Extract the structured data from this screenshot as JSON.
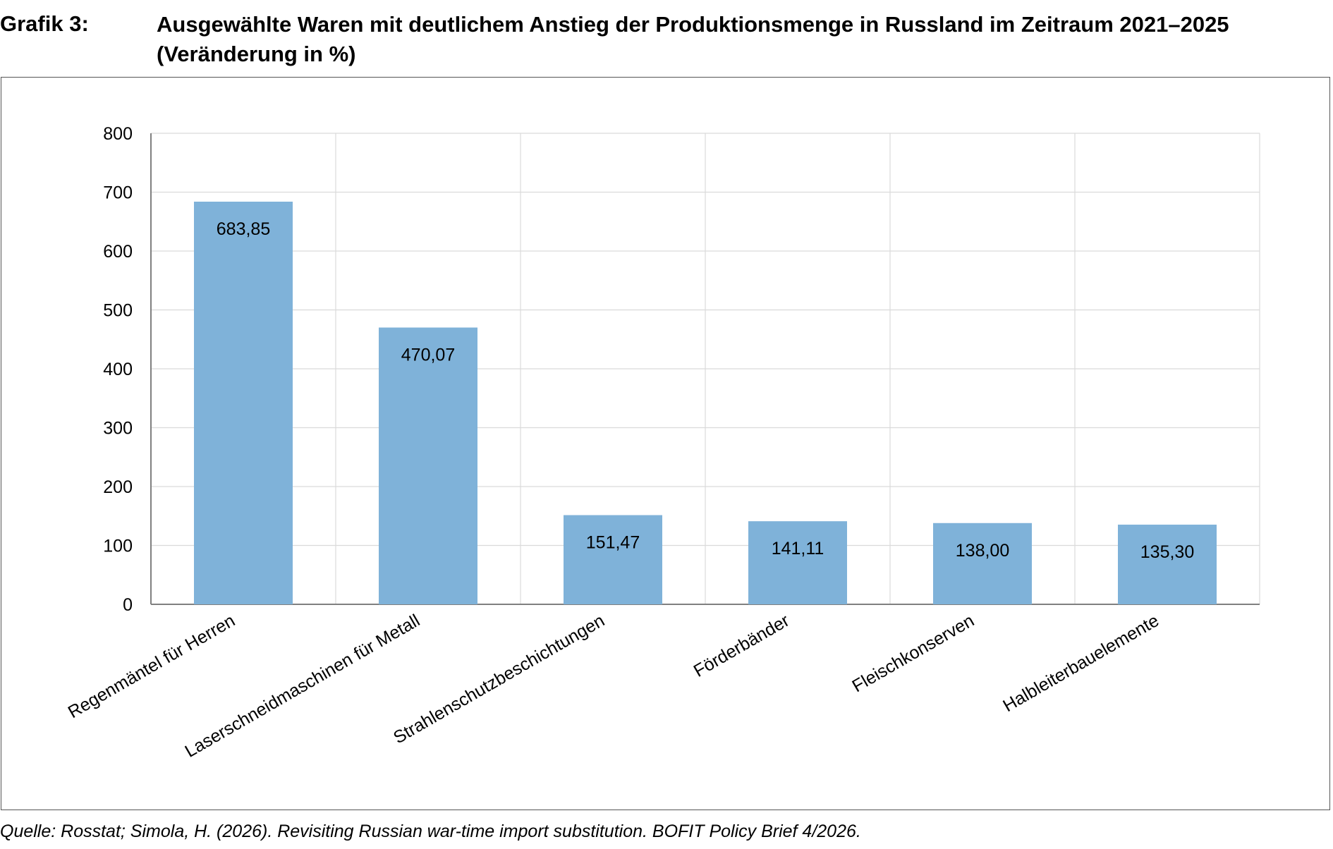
{
  "figure": {
    "label": "Grafik 3:",
    "title": "Ausgewählte Waren mit deutlichem Anstieg der Produktionsmenge in Russland im Zeitraum 2021–2025 (Veränderung in %)",
    "source": "Quelle: Rosstat; Simola, H. (2026). Revisiting Russian war-time import substitution. BOFIT Policy Brief 4/2026."
  },
  "chart_data": {
    "type": "bar",
    "categories": [
      "Regenmäntel für Herren",
      "Laserschneidmaschinen für Metall",
      "Strahlenschutzbeschichtungen",
      "Förderbänder",
      "Fleischkonserven",
      "Halbleiterbauelemente"
    ],
    "values": [
      683.85,
      470.07,
      151.47,
      141.11,
      138.0,
      135.3
    ],
    "data_labels": [
      "683,85",
      "470,07",
      "151,47",
      "141,11",
      "138,00",
      "135,30"
    ],
    "ylim": [
      0,
      800
    ],
    "yticks": [
      0,
      100,
      200,
      300,
      400,
      500,
      600,
      700,
      800
    ],
    "grid": true,
    "bar_color": "#7fb2d9",
    "legend": "none"
  }
}
